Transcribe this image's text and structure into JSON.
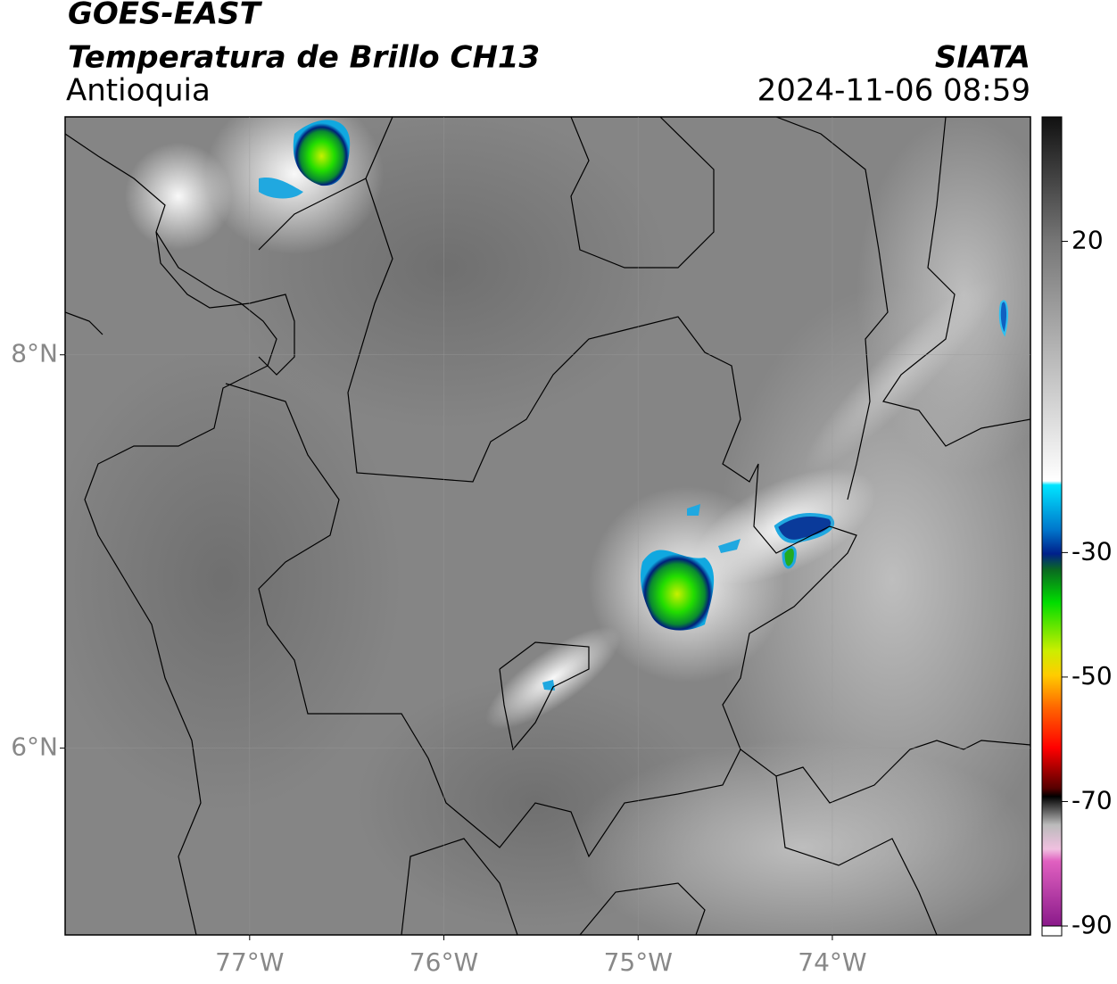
{
  "header": {
    "title": "GOES-EAST",
    "subtitle": "Temperatura de Brillo CH13",
    "region": "Antioquia",
    "source": "SIATA",
    "datetime": "2024-11-06 08:59"
  },
  "map": {
    "xlim": [
      -77.95,
      -72.98
    ],
    "ylim": [
      5.05,
      9.21
    ],
    "xticks": [
      {
        "value": -77,
        "label": "77°W"
      },
      {
        "value": -76,
        "label": "76°W"
      },
      {
        "value": -75,
        "label": "75°W"
      },
      {
        "value": -74,
        "label": "74°W"
      }
    ],
    "yticks": [
      {
        "value": 6,
        "label": "6°N"
      },
      {
        "value": 8,
        "label": "8°N"
      }
    ],
    "grid": true
  },
  "colorbar": {
    "lim": [
      -90,
      40
    ],
    "ticks": [
      20,
      -30,
      -50,
      -70,
      -90
    ]
  }
}
